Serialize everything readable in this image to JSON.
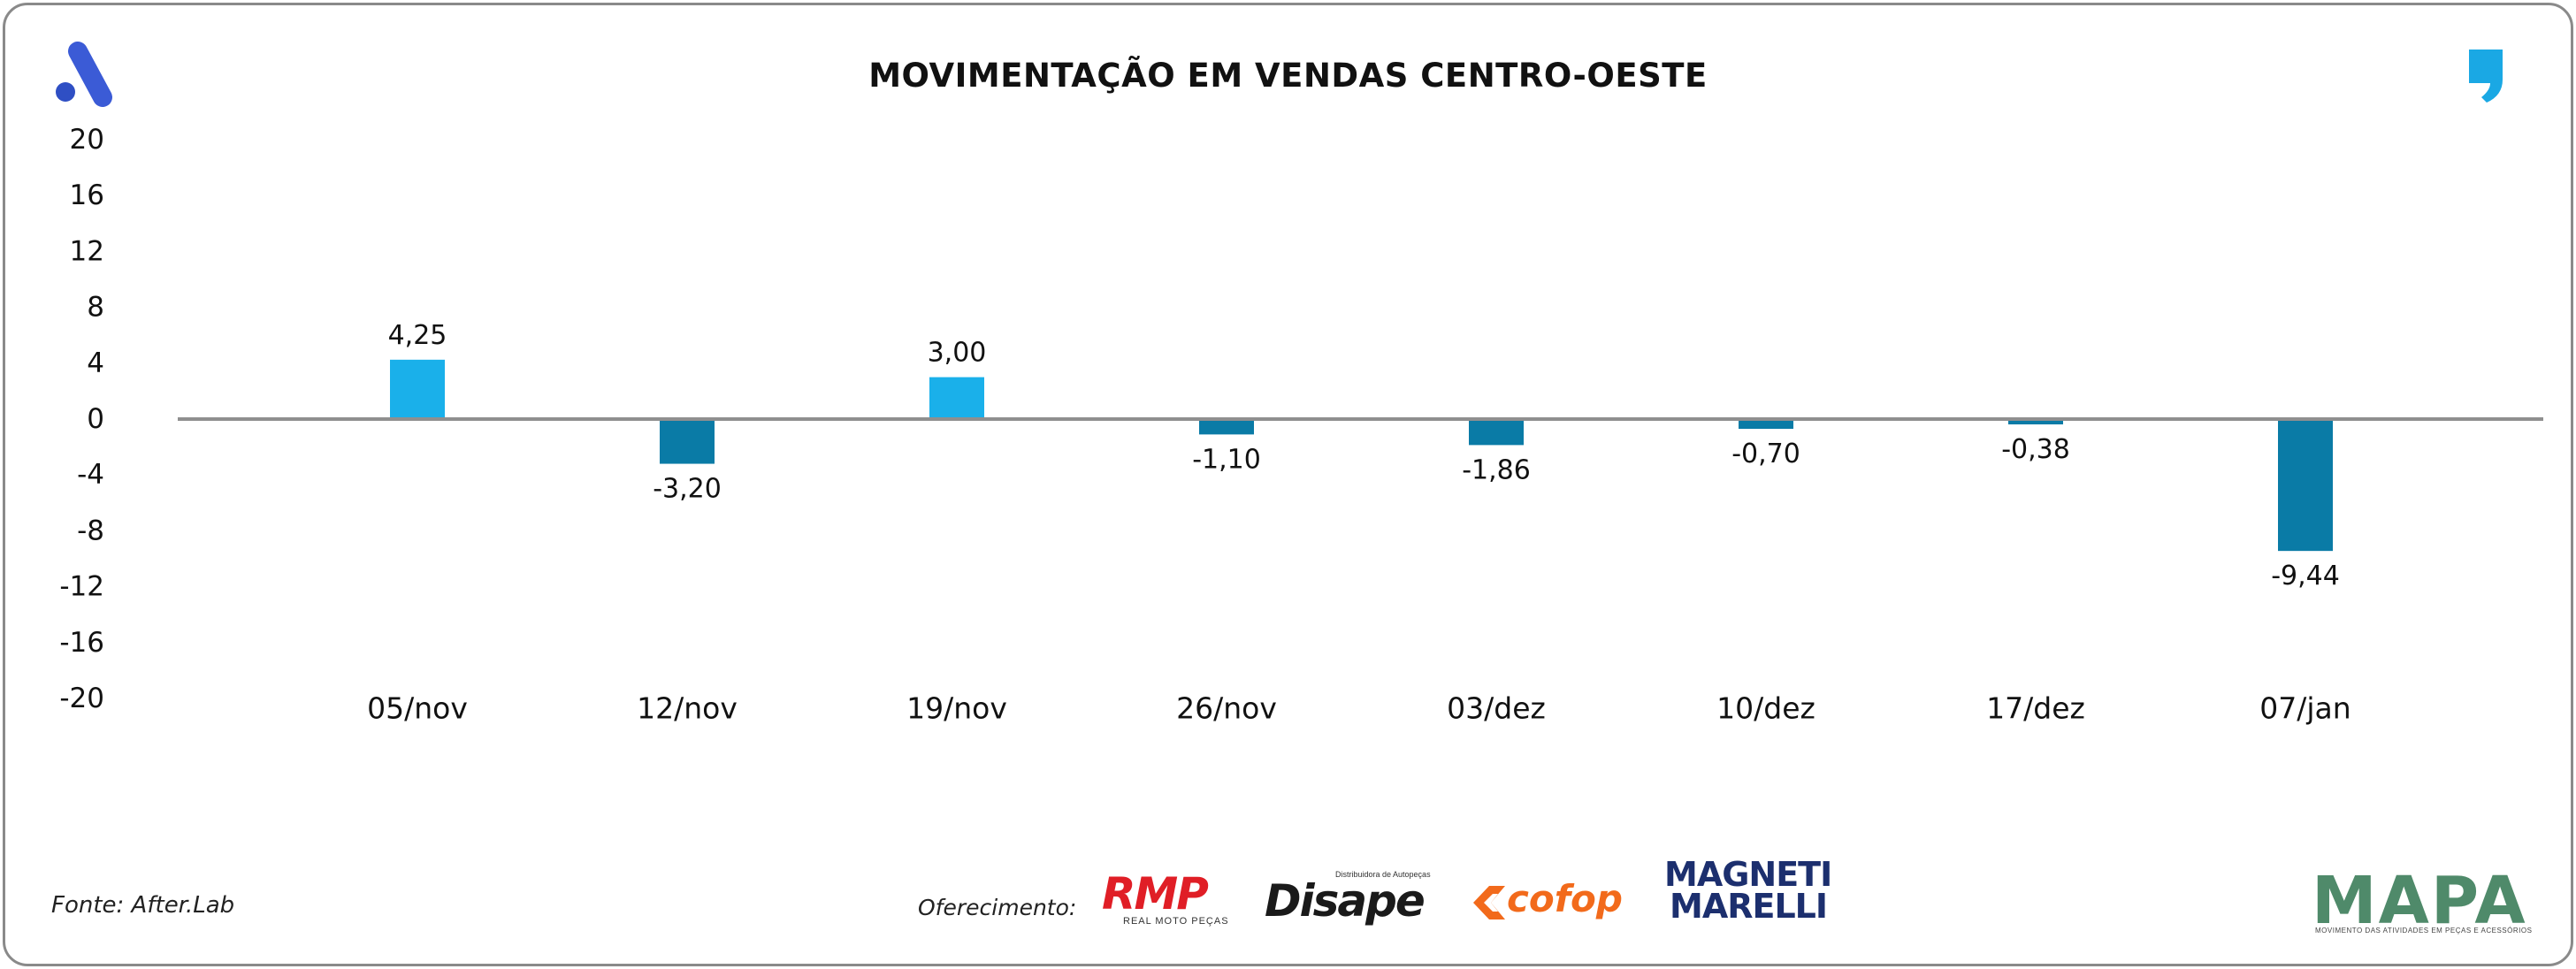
{
  "header": {
    "title": "MOVIMENTAÇÃO EM VENDAS CENTRO-OESTE"
  },
  "chart_data": {
    "type": "bar",
    "title": "MOVIMENTAÇÃO EM VENDAS CENTRO-OESTE",
    "categories": [
      "05/nov",
      "12/nov",
      "19/nov",
      "26/nov",
      "03/dez",
      "10/dez",
      "17/dez",
      "07/jan"
    ],
    "values": [
      4.25,
      -3.2,
      3.0,
      -1.1,
      -1.86,
      -0.7,
      -0.38,
      -9.44
    ],
    "value_labels": [
      "4,25",
      "-3,20",
      "3,00",
      "-1,10",
      "-1,86",
      "-0,70",
      "-0,38",
      "-9,44"
    ],
    "yticks": [
      20,
      16,
      12,
      8,
      4,
      0,
      -4,
      -8,
      -12,
      -16,
      -20
    ],
    "ylim": [
      -20,
      20
    ],
    "xlabel": "",
    "ylabel": "",
    "grid": false,
    "colors": {
      "positive": "#1ab0ea",
      "negative": "#0a7ba6",
      "baseline": "#8f8f8f",
      "text": "#111111"
    }
  },
  "footer": {
    "source": "Fonte: After.Lab",
    "offer_label": "Oferecimento:",
    "sponsors": {
      "rmp": {
        "main": "RMP",
        "sub": "REAL MOTO PEÇAS"
      },
      "disape": {
        "main": "Disape",
        "sub": "Distribuidora de Autopeças"
      },
      "cofop": {
        "main": "cofop"
      },
      "magneti": {
        "line1": "MAGNETI",
        "line2": "MARELLI"
      },
      "mapa": {
        "main": "MAPA",
        "sub": "MOVIMENTO DAS ATIVIDADES EM PEÇAS E ACESSÓRIOS"
      }
    }
  },
  "icons": {
    "top_left": "afterlab-a-logo-icon",
    "top_right": "comma-logo-icon"
  }
}
